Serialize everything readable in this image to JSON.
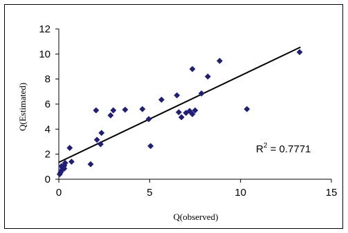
{
  "chart_data": {
    "type": "scatter",
    "title": "",
    "xlabel": "Q(observed)",
    "ylabel": "Q(Estimated)",
    "xlim": [
      0,
      15
    ],
    "ylim": [
      0,
      12
    ],
    "x_ticks": [
      "0",
      "5",
      "10",
      "15"
    ],
    "y_ticks": [
      "0",
      "2",
      "4",
      "6",
      "8",
      "10",
      "12"
    ],
    "grid": false,
    "legend": "none",
    "marker_color": "#1f1f7a",
    "series": [
      {
        "marker": "diamond",
        "points": [
          [
            0.05,
            0.4
          ],
          [
            0.1,
            0.55
          ],
          [
            0.15,
            0.7
          ],
          [
            0.2,
            0.9
          ],
          [
            0.25,
            1.0
          ],
          [
            0.15,
            1.05
          ],
          [
            0.3,
            1.1
          ],
          [
            0.35,
            1.3
          ],
          [
            0.3,
            0.85
          ],
          [
            0.6,
            2.5
          ],
          [
            0.7,
            1.4
          ],
          [
            1.75,
            1.2
          ],
          [
            2.05,
            5.5
          ],
          [
            2.1,
            3.15
          ],
          [
            2.3,
            2.8
          ],
          [
            2.35,
            3.7
          ],
          [
            2.85,
            5.1
          ],
          [
            3.0,
            5.5
          ],
          [
            3.65,
            5.55
          ],
          [
            4.6,
            5.6
          ],
          [
            4.95,
            4.8
          ],
          [
            5.05,
            2.65
          ],
          [
            5.65,
            6.35
          ],
          [
            6.5,
            6.7
          ],
          [
            6.6,
            5.35
          ],
          [
            6.75,
            4.95
          ],
          [
            7.0,
            5.3
          ],
          [
            7.2,
            5.45
          ],
          [
            7.35,
            5.2
          ],
          [
            7.5,
            5.5
          ],
          [
            7.35,
            8.8
          ],
          [
            7.85,
            6.85
          ],
          [
            8.2,
            8.2
          ],
          [
            8.85,
            9.45
          ],
          [
            10.35,
            5.6
          ],
          [
            13.25,
            10.15
          ]
        ]
      }
    ],
    "trendline": {
      "x": [
        0,
        13.3
      ],
      "y": [
        1.35,
        10.55
      ]
    },
    "annotation": {
      "prefix": "R",
      "sup": "2",
      "suffix": " = 0.7771"
    }
  }
}
